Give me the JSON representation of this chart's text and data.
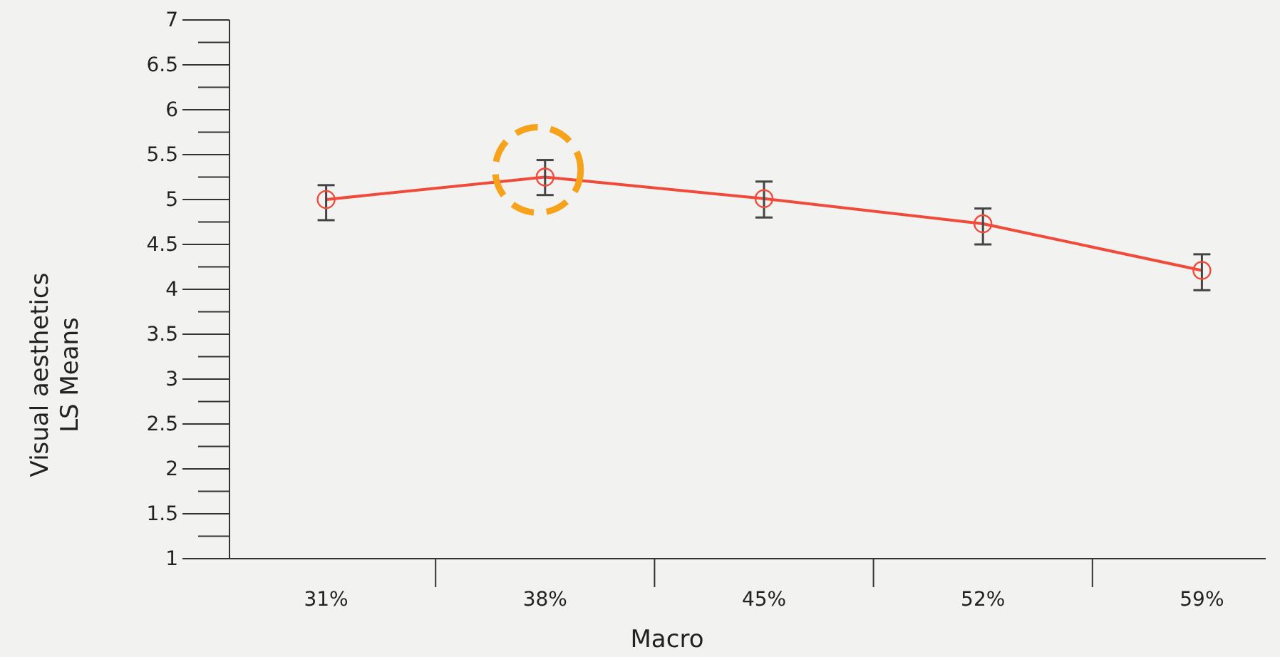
{
  "chart_data": {
    "type": "line",
    "xlabel": "Macro",
    "ylabel": "Visual aesthetics\nLS Means",
    "categories": [
      "31%",
      "38%",
      "45%",
      "52%",
      "59%"
    ],
    "series": [
      {
        "color": "#f04a3a",
        "values": [
          5.0,
          5.25,
          5.01,
          4.73,
          4.21
        ],
        "errors": [
          [
            4.77,
            5.16
          ],
          [
            5.05,
            5.44
          ],
          [
            4.8,
            5.2
          ],
          [
            4.5,
            4.9
          ],
          [
            3.99,
            4.39
          ]
        ]
      }
    ],
    "ylim": [
      1,
      7
    ],
    "yticks": [
      1,
      1.5,
      2,
      2.5,
      3,
      3.5,
      4,
      4.5,
      5,
      5.5,
      6,
      6.5,
      7
    ],
    "marker": "circle",
    "grid": false
  }
}
